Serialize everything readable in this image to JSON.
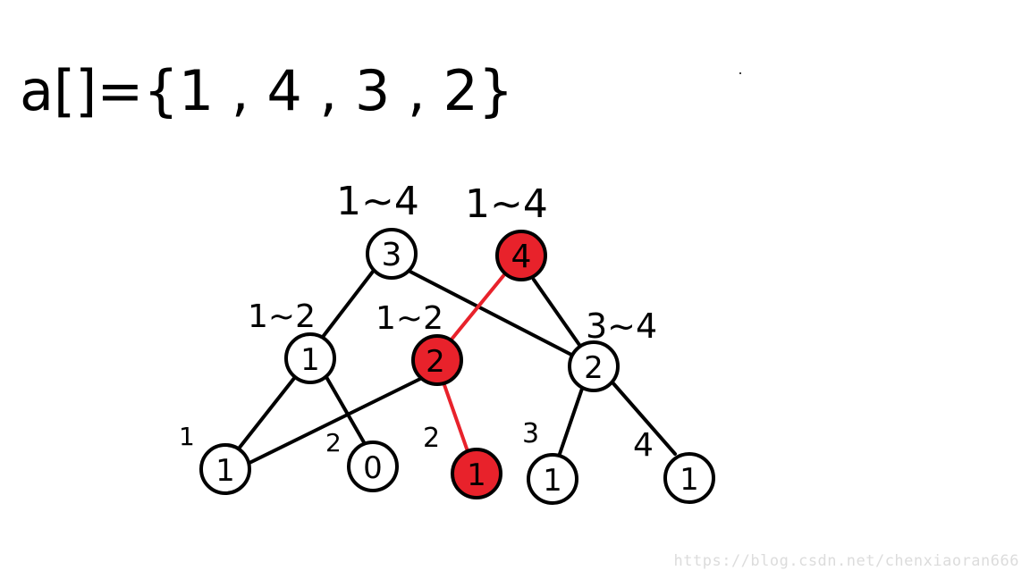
{
  "array_text": "a[]={1 , 4 , 3 , 2}",
  "colors": {
    "highlight": "#e8222b",
    "stroke": "#000000",
    "node_fill": "#ffffff"
  },
  "trees": [
    {
      "root_range": "1~4",
      "root_value": "3",
      "highlighted": false
    },
    {
      "root_range": "1~4",
      "root_value": "4",
      "highlighted": true
    }
  ],
  "nodes": {
    "root_a": {
      "value": "3",
      "range": "1~4",
      "highlight": false
    },
    "root_b": {
      "value": "4",
      "range": "1~4",
      "highlight": true
    },
    "mid_left_a": {
      "value": "1",
      "range": "1~2",
      "highlight": false
    },
    "mid_left_b": {
      "value": "2",
      "range": "1~2",
      "highlight": true
    },
    "mid_right": {
      "value": "2",
      "range": "3~4",
      "highlight": false
    },
    "leaf_1": {
      "value": "1",
      "range": "1",
      "highlight": false
    },
    "leaf_2a": {
      "value": "0",
      "range": "2",
      "highlight": false
    },
    "leaf_2b": {
      "value": "1",
      "range": "2",
      "highlight": true
    },
    "leaf_3": {
      "value": "1",
      "range": "3",
      "highlight": false
    },
    "leaf_4": {
      "value": "1",
      "range": "4",
      "highlight": false
    }
  },
  "watermark": "https://blog.csdn.net/chenxiaoran666"
}
